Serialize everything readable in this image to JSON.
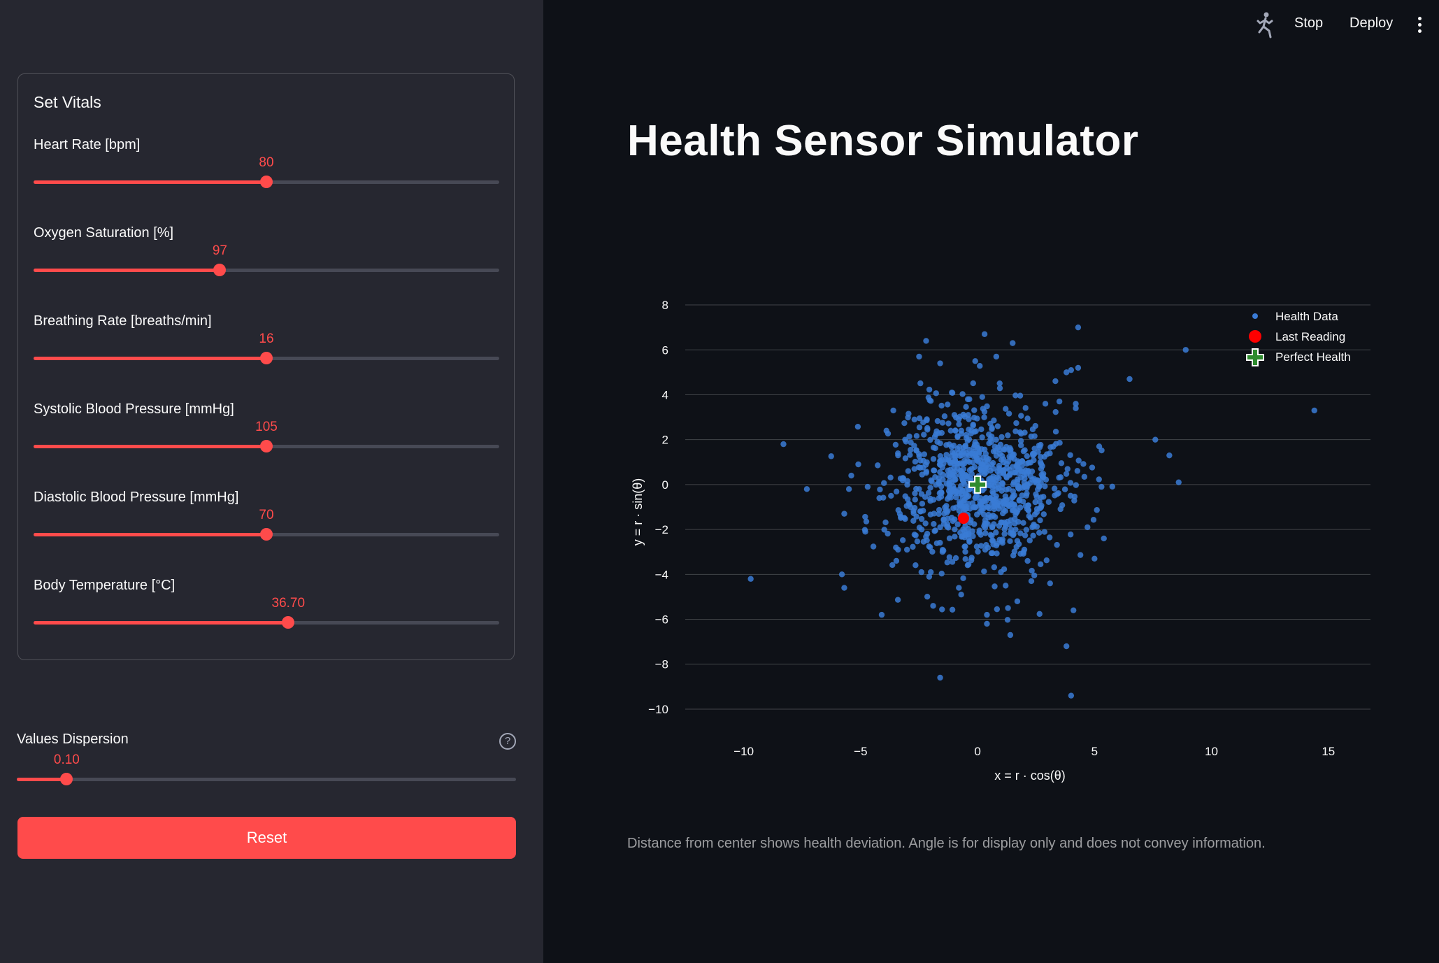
{
  "header": {
    "stop_label": "Stop",
    "deploy_label": "Deploy"
  },
  "sidebar": {
    "title": "Set Vitals",
    "sliders": [
      {
        "label": "Heart Rate [bpm]",
        "value": "80",
        "fraction": 0.5
      },
      {
        "label": "Oxygen Saturation [%]",
        "value": "97",
        "fraction": 0.4
      },
      {
        "label": "Breathing Rate [breaths/min]",
        "value": "16",
        "fraction": 0.5
      },
      {
        "label": "Systolic Blood Pressure [mmHg]",
        "value": "105",
        "fraction": 0.5
      },
      {
        "label": "Diastolic Blood Pressure [mmHg]",
        "value": "70",
        "fraction": 0.5
      },
      {
        "label": "Body Temperature [°C]",
        "value": "36.70",
        "fraction": 0.547
      }
    ],
    "dispersion": {
      "label": "Values Dispersion",
      "value": "0.10",
      "fraction": 0.1,
      "help_icon": "question-circle-icon"
    },
    "reset_label": "Reset"
  },
  "main": {
    "title": "Health Sensor Simulator",
    "caption": "Distance from center shows health deviation. Angle is for display only and does not convey information."
  },
  "colors": {
    "accent": "#ff4b4b",
    "health_data": "#3a7bd5",
    "last_reading": "#ff0000",
    "perfect_health": "#2e8b2e"
  },
  "chart_data": {
    "type": "scatter",
    "xlabel": "x = r · cos(θ)",
    "ylabel": "y = r · sin(θ)",
    "xlim": [
      -12.5,
      16.8
    ],
    "ylim": [
      -10.5,
      8.5
    ],
    "xticks": [
      -10,
      -5,
      0,
      5,
      10,
      15
    ],
    "yticks": [
      -10,
      -8,
      -6,
      -4,
      -2,
      0,
      2,
      4,
      6,
      8
    ],
    "grid": "horizontal",
    "legend_position": "top-right",
    "series": [
      {
        "name": "Health Data",
        "marker": "circle",
        "cluster": {
          "center": [
            0,
            0
          ],
          "spread": 1.8,
          "count": 900
        },
        "points": [
          [
            -9.7,
            -4.2
          ],
          [
            -8.3,
            1.8
          ],
          [
            -7.3,
            -0.2
          ],
          [
            -5.8,
            -4.0
          ],
          [
            -5.7,
            -4.6
          ],
          [
            -5.5,
            -0.2
          ],
          [
            -5.7,
            -1.3
          ],
          [
            -5.4,
            0.4
          ],
          [
            -5.1,
            0.9
          ],
          [
            -4.8,
            -2.1
          ],
          [
            -4.7,
            -0.1
          ],
          [
            -4.1,
            -5.8
          ],
          [
            -4.2,
            -0.6
          ],
          [
            -3.7,
            -0.5
          ],
          [
            -3.4,
            -2.9
          ],
          [
            -3.1,
            2.0
          ],
          [
            -2.7,
            2.9
          ],
          [
            -2.5,
            -0.2
          ],
          [
            -2.4,
            -3.9
          ],
          [
            -2.0,
            -3.9
          ],
          [
            -1.9,
            -5.4
          ],
          [
            -1.6,
            -1.9
          ],
          [
            -1.5,
            -3.0
          ],
          [
            -1.6,
            -8.6
          ],
          [
            -1.6,
            5.4
          ],
          [
            -2.5,
            5.7
          ],
          [
            -2.2,
            6.4
          ],
          [
            -1.1,
            4.1
          ],
          [
            -0.8,
            -4.6
          ],
          [
            -0.7,
            -4.9
          ],
          [
            -0.4,
            3.1
          ],
          [
            0.3,
            6.7
          ],
          [
            -0.1,
            5.5
          ],
          [
            0.2,
            3.9
          ],
          [
            0.4,
            -5.8
          ],
          [
            0.4,
            -6.2
          ],
          [
            0.8,
            5.7
          ],
          [
            1.0,
            -3.9
          ],
          [
            1.2,
            -4.5
          ],
          [
            1.3,
            -5.5
          ],
          [
            1.4,
            -6.7
          ],
          [
            1.5,
            6.3
          ],
          [
            1.7,
            -5.2
          ],
          [
            2.0,
            -2.9
          ],
          [
            2.3,
            -4.3
          ],
          [
            2.9,
            3.6
          ],
          [
            3.1,
            -4.4
          ],
          [
            3.5,
            3.7
          ],
          [
            3.8,
            -7.2
          ],
          [
            3.8,
            5.0
          ],
          [
            4.0,
            5.1
          ],
          [
            4.1,
            -5.6
          ],
          [
            4.0,
            -9.4
          ],
          [
            4.2,
            3.4
          ],
          [
            4.3,
            5.2
          ],
          [
            4.2,
            3.6
          ],
          [
            4.7,
            -1.9
          ],
          [
            5.0,
            -3.3
          ],
          [
            5.2,
            1.7
          ],
          [
            5.4,
            -2.4
          ],
          [
            5.3,
            -0.1
          ],
          [
            6.5,
            4.7
          ],
          [
            7.6,
            2.0
          ],
          [
            8.2,
            1.3
          ],
          [
            8.6,
            0.1
          ],
          [
            8.9,
            6.0
          ],
          [
            14.4,
            3.3
          ],
          [
            4.3,
            7.0
          ],
          [
            2.2,
            -1.4
          ],
          [
            -3.4,
            1.3
          ]
        ]
      },
      {
        "name": "Last Reading",
        "marker": "circle",
        "points": [
          [
            -0.6,
            -1.5
          ]
        ]
      },
      {
        "name": "Perfect Health",
        "marker": "cross",
        "points": [
          [
            0,
            0
          ]
        ]
      }
    ]
  }
}
